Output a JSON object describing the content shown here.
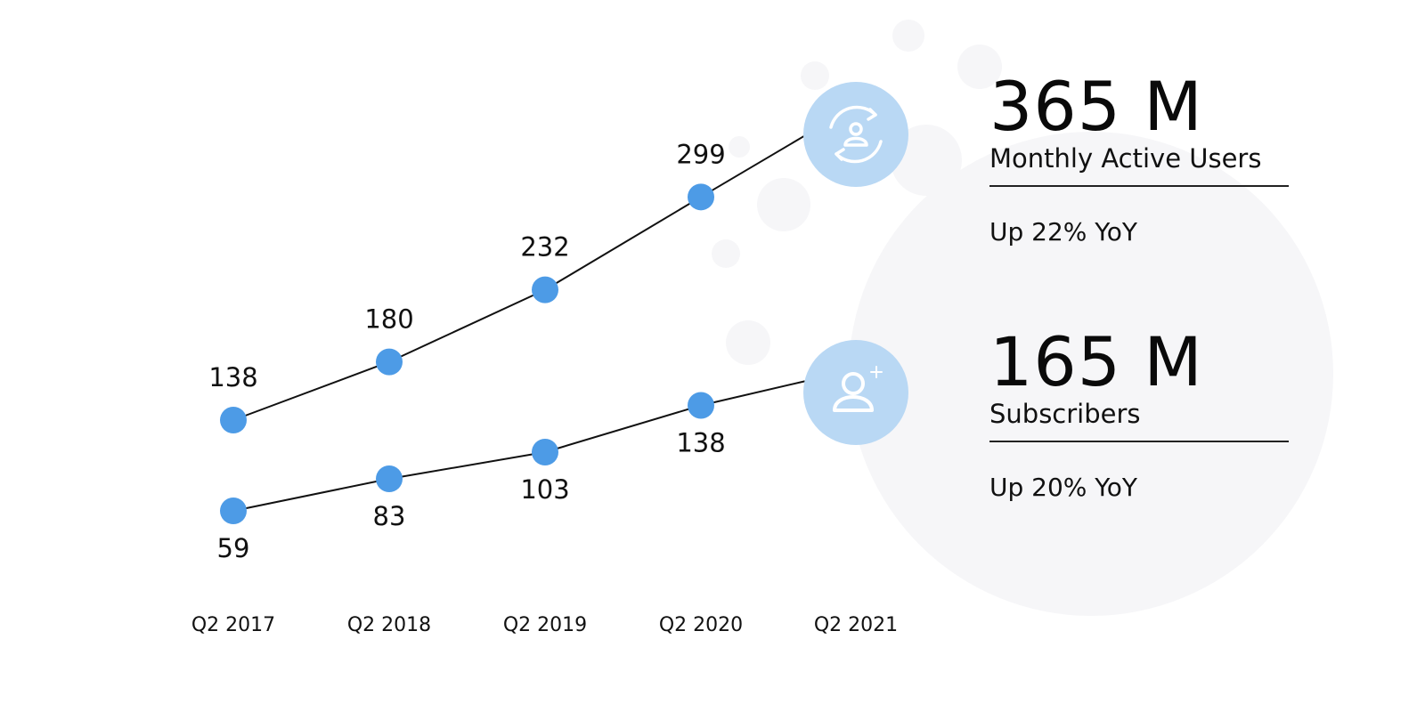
{
  "chart_data": {
    "type": "line",
    "categories": [
      "Q2 2017",
      "Q2 2018",
      "Q2 2019",
      "Q2 2020",
      "Q2 2021"
    ],
    "series": [
      {
        "name": "Monthly Active Users",
        "values": [
          138,
          180,
          232,
          299,
          365
        ],
        "unit": "M"
      },
      {
        "name": "Subscribers",
        "values": [
          59,
          83,
          103,
          138,
          165
        ],
        "unit": "M"
      }
    ],
    "point_labels": [
      [
        "138",
        "180",
        "232",
        "299"
      ],
      [
        "59",
        "83",
        "103",
        "138"
      ]
    ],
    "grid": false,
    "colors": {
      "marker": "#4d9be6",
      "line": "#111111",
      "icon_bg": "#b9d8f4",
      "icon_fg": "#ffffff"
    }
  },
  "stats": {
    "mau": {
      "value": "365 M",
      "label": "Monthly Active Users",
      "change": "Up 22% YoY",
      "icon": "user-refresh-icon"
    },
    "subscribers": {
      "value": "165 M",
      "label": "Subscribers",
      "change": "Up 20% YoY",
      "icon": "user-add-icon"
    }
  }
}
